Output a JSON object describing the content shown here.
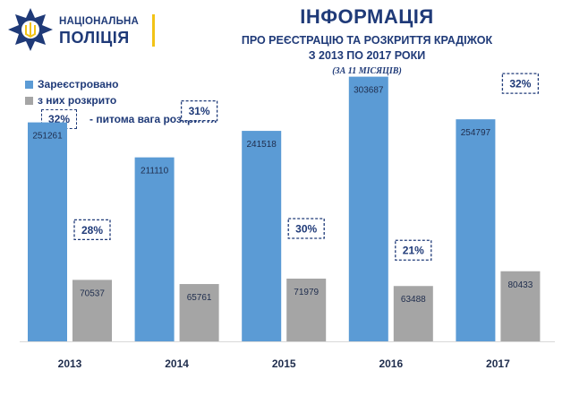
{
  "logo": {
    "line1": "НАЦІОНАЛЬНА",
    "line2": "ПОЛІЦІЯ"
  },
  "header": {
    "title": "ІНФОРМАЦІЯ",
    "subtitle1": "ПРО РЕЄСТРАЦІЮ ТА РОЗКРИТТЯ КРАДІЖОК",
    "subtitle2": "З 2013 ПО 2017 РОКИ",
    "subtitle3": "(ЗА 11 МІСЯЦІВ)"
  },
  "legend": {
    "registered": "Зареєстровано",
    "solved": "з них розкрито",
    "share_sample": "32%",
    "share_label": "- питома вага розкриття"
  },
  "colors": {
    "registered": "#5b9bd5",
    "solved": "#a5a5a5",
    "accent": "#1f3a78",
    "brand_yellow": "#f2c316"
  },
  "chart_data": {
    "type": "bar",
    "categories": [
      "2013",
      "2014",
      "2015",
      "2016",
      "2017"
    ],
    "series": [
      {
        "name": "Зареєстровано",
        "values": [
          251261,
          211110,
          241518,
          303687,
          254797
        ]
      },
      {
        "name": "з них розкрито",
        "values": [
          70537,
          65761,
          71979,
          63488,
          80433
        ]
      }
    ],
    "share_labels": [
      "28%",
      "31%",
      "30%",
      "21%",
      "32%"
    ],
    "ylim": [
      0,
      330000
    ],
    "grid": false,
    "legend_position": "top-left"
  }
}
